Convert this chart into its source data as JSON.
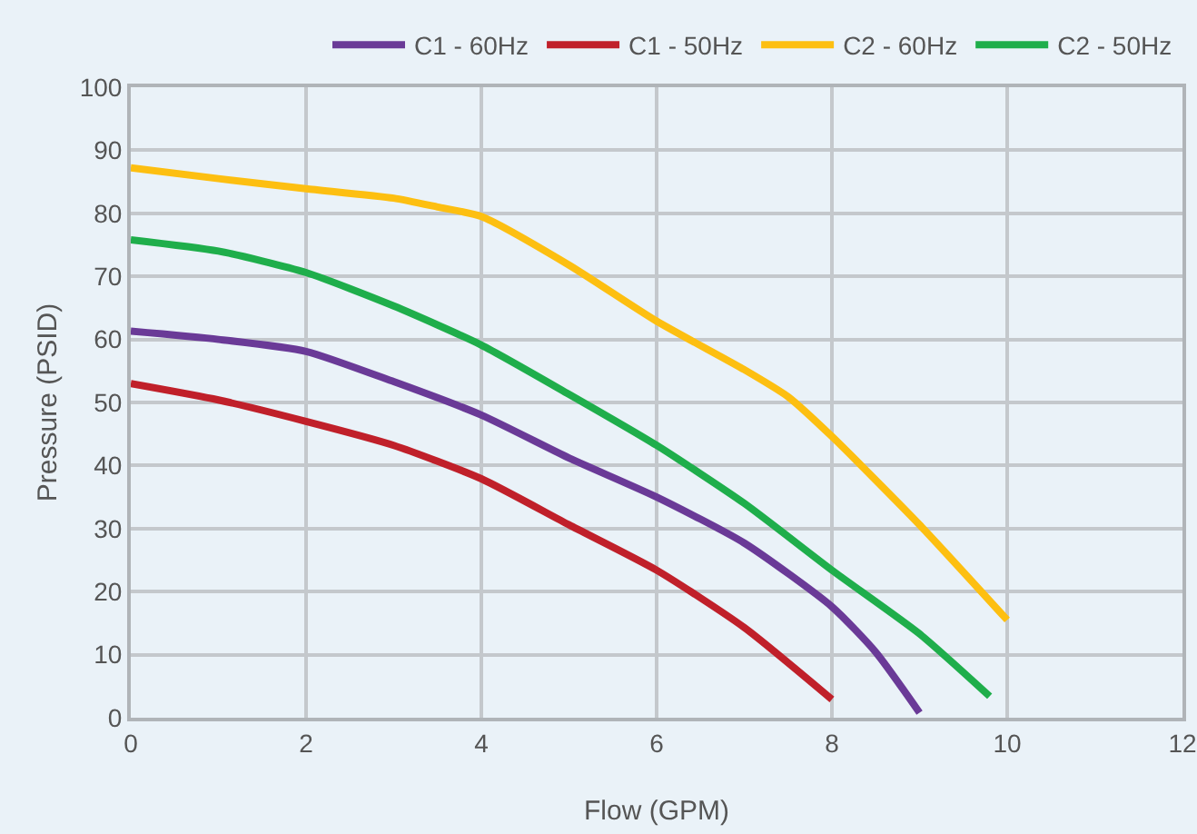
{
  "chart_data": {
    "type": "line",
    "xlabel": "Flow (GPM)",
    "ylabel": "Pressure (PSID)",
    "xlim": [
      0,
      12
    ],
    "xticks": [
      0,
      2,
      4,
      6,
      8,
      10,
      12
    ],
    "ylim": [
      0,
      100
    ],
    "yticks": [
      0,
      10,
      20,
      30,
      40,
      50,
      60,
      70,
      80,
      90,
      100
    ],
    "grid": true,
    "legend": "top",
    "marker": "none",
    "line_style": "solid",
    "series": [
      {
        "name": "C1 - 60Hz",
        "color": "#6a3a97",
        "x": [
          0,
          1,
          2,
          3,
          4,
          5,
          6,
          7,
          8,
          8.5,
          9
        ],
        "values": [
          61.3,
          60,
          58.1,
          53.3,
          48,
          41.2,
          35,
          27.7,
          17.6,
          10.4,
          0.8
        ]
      },
      {
        "name": "C1 - 50Hz",
        "color": "#c0202a",
        "x": [
          0,
          1,
          2,
          3,
          4,
          5,
          6,
          7,
          8
        ],
        "values": [
          53,
          50.4,
          47,
          43.2,
          37.9,
          30.6,
          23.4,
          14.3,
          2.9
        ]
      },
      {
        "name": "C2 - 60Hz",
        "color": "#fdbf11",
        "x": [
          0,
          1,
          2,
          3,
          3.5,
          4,
          5,
          6,
          7,
          7.5,
          8,
          9,
          10
        ],
        "values": [
          87.2,
          85.5,
          83.9,
          82.4,
          81,
          79.5,
          71.8,
          62.9,
          55.2,
          50.9,
          44.6,
          30.6,
          15.5
        ]
      },
      {
        "name": "C2 - 50Hz",
        "color": "#1fae4b",
        "x": [
          0,
          1,
          2,
          3,
          4,
          5,
          6,
          7,
          8,
          9,
          9.8
        ],
        "values": [
          75.8,
          74,
          70.6,
          65.3,
          59.1,
          51.3,
          43.2,
          34,
          23.4,
          13.3,
          3.4
        ]
      }
    ]
  }
}
